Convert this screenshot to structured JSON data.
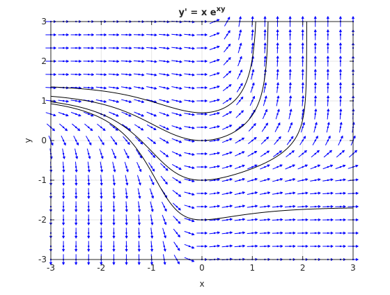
{
  "chart_data": {
    "type": "quiver",
    "title": {
      "base": "y' = x e",
      "superscript": "xy"
    },
    "xlabel": "x",
    "ylabel": "y",
    "xlim": [
      -3,
      3
    ],
    "ylim": [
      -3,
      3
    ],
    "xticks": [
      "-3",
      "-2",
      "-1",
      "0",
      "1",
      "2",
      "3"
    ],
    "yticks": [
      "-3",
      "-2",
      "-1",
      "0",
      "1",
      "2",
      "3"
    ],
    "grid": true,
    "box": true,
    "equation": "dy/dx = x*exp(x*y)",
    "field_grid": {
      "nx": 25,
      "ny": 19,
      "x_range": [
        -3,
        3
      ],
      "y_range": [
        -3,
        3
      ]
    },
    "solution_curves": [
      {
        "name": "",
        "initial_condition": [
          0,
          0.7
        ]
      },
      {
        "name": "",
        "initial_condition": [
          0,
          0
        ]
      },
      {
        "name": "",
        "initial_condition": [
          0,
          -1
        ]
      },
      {
        "name": "",
        "initial_condition": [
          0,
          -2
        ]
      }
    ],
    "colors": {
      "arrows": "#0000ff",
      "curves": "#000000",
      "grid": "#e6e6e6",
      "axes": "#262626"
    }
  }
}
